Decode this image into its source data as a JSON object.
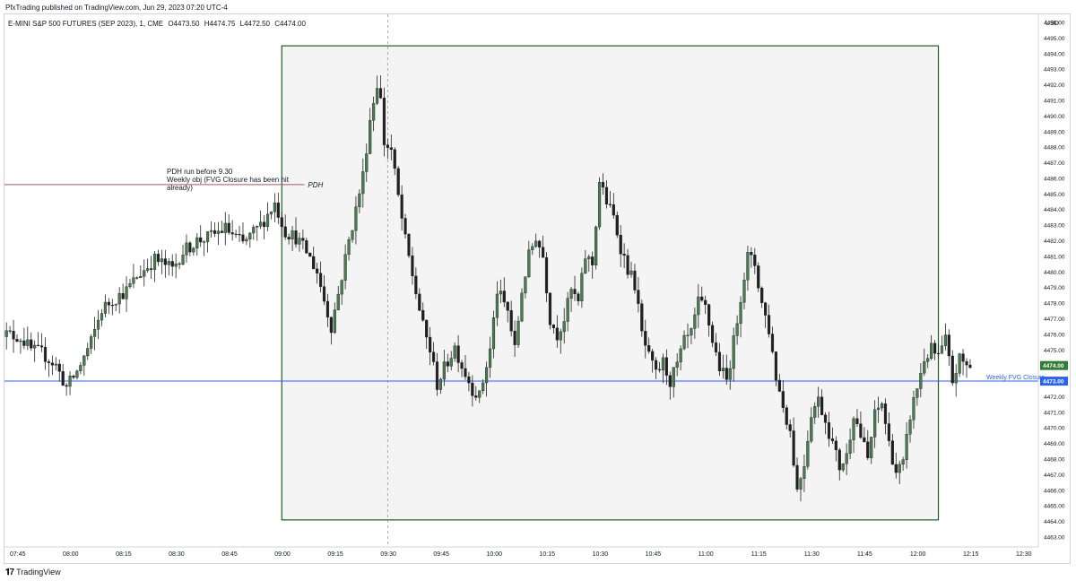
{
  "header": {
    "published": "PfxTrading published on TradingView.com, Jun 29, 2023 07:20 UTC-4"
  },
  "chart_data": {
    "type": "candlestick",
    "title": "E-MINI S&P 500 FUTURES (SEP 2023), 1, CME",
    "ohlc": {
      "o": "O4473.50",
      "h": "H4474.75",
      "l": "L4472.50",
      "c": "C4474.00"
    },
    "currency": "USD",
    "x_ticks": [
      "07:45",
      "08:00",
      "08:15",
      "08:30",
      "08:45",
      "09:00",
      "09:15",
      "09:30",
      "09:45",
      "10:00",
      "10:15",
      "10:30",
      "10:45",
      "11:00",
      "11:15",
      "11:30",
      "11:45",
      "12:00",
      "12:15",
      "12:30"
    ],
    "y_ticks": [
      4463,
      4464,
      4465,
      4466,
      4467,
      4468,
      4469,
      4470,
      4471,
      4472,
      4473,
      4474,
      4475,
      4476,
      4477,
      4478,
      4479,
      4480,
      4481,
      4482,
      4483,
      4484,
      4485,
      4486,
      4487,
      4488,
      4489,
      4490,
      4491,
      4492,
      4493,
      4494,
      4495,
      4496
    ],
    "ylim": [
      4462.3,
      4496.8
    ],
    "last_price": {
      "value": 4474.0,
      "label": "4474.00",
      "color": "#2e7d32"
    },
    "level_line": {
      "value": 4473.0,
      "label": "4473.00",
      "name": "Weekly FVG Closure",
      "color": "#2962ff"
    },
    "pdh_line": {
      "value": 4485.6,
      "label": "PDH",
      "color": "#b2555f",
      "from": "07:40",
      "to": "09:14"
    },
    "annotation": "PDH run before 9.30\nWeekly obj (FVG Closure has been hit already)",
    "box": {
      "from": "09:00",
      "to": "12:06",
      "top": 4494.5,
      "bottom": 4464.1,
      "color": "#1b5e20",
      "fill": "#f4f4f4"
    },
    "crosshair_time": "09:30",
    "colors": {
      "up": "#4a7b4e",
      "down": "#202020"
    },
    "anchors": [
      [
        "07:40",
        4476.8
      ],
      [
        "07:43",
        4476.0
      ],
      [
        "07:47",
        4475.8
      ],
      [
        "07:50",
        4475.0
      ],
      [
        "07:53",
        4474.8
      ],
      [
        "07:57",
        4474.0
      ],
      [
        "08:00",
        4472.6
      ],
      [
        "08:03",
        4473.6
      ],
      [
        "08:07",
        4475.5
      ],
      [
        "08:10",
        4477.6
      ],
      [
        "08:13",
        4478.2
      ],
      [
        "08:17",
        4478.8
      ],
      [
        "08:20",
        4479.7
      ],
      [
        "08:25",
        4480.8
      ],
      [
        "08:30",
        4480.2
      ],
      [
        "08:33",
        4481.3
      ],
      [
        "08:37",
        4482.0
      ],
      [
        "08:40",
        4482.2
      ],
      [
        "08:45",
        4482.8
      ],
      [
        "08:50",
        4481.8
      ],
      [
        "08:55",
        4483.0
      ],
      [
        "08:59",
        4484.4
      ],
      [
        "09:02",
        4482.6
      ],
      [
        "09:05",
        4482.2
      ],
      [
        "09:08",
        4481.3
      ],
      [
        "09:11",
        4480.0
      ],
      [
        "09:13",
        4478.2
      ],
      [
        "09:15",
        4476.5
      ],
      [
        "09:17",
        4478.6
      ],
      [
        "09:20",
        4482.0
      ],
      [
        "09:22",
        4484.0
      ],
      [
        "09:24",
        4486.2
      ],
      [
        "09:26",
        4489.8
      ],
      [
        "09:28",
        4492.1
      ],
      [
        "09:29",
        4491.0
      ],
      [
        "09:30",
        4488.3
      ],
      [
        "09:32",
        4487.8
      ],
      [
        "09:34",
        4484.8
      ],
      [
        "09:36",
        4482.0
      ],
      [
        "09:38",
        4479.8
      ],
      [
        "09:41",
        4476.5
      ],
      [
        "09:43",
        4475.0
      ],
      [
        "09:45",
        4472.8
      ],
      [
        "09:47",
        4473.8
      ],
      [
        "09:50",
        4475.2
      ],
      [
        "09:52",
        4474.0
      ],
      [
        "09:55",
        4472.5
      ],
      [
        "09:57",
        4472.0
      ],
      [
        "10:00",
        4475.0
      ],
      [
        "10:02",
        4478.8
      ],
      [
        "10:05",
        4477.5
      ],
      [
        "10:07",
        4475.0
      ],
      [
        "10:09",
        4478.8
      ],
      [
        "10:11",
        4481.0
      ],
      [
        "10:13",
        4482.3
      ],
      [
        "10:15",
        4481.0
      ],
      [
        "10:17",
        4477.0
      ],
      [
        "10:19",
        4476.0
      ],
      [
        "10:21",
        4477.0
      ],
      [
        "10:23",
        4478.8
      ],
      [
        "10:25",
        4478.0
      ],
      [
        "10:27",
        4481.0
      ],
      [
        "10:29",
        4480.5
      ],
      [
        "10:31",
        4485.8
      ],
      [
        "10:33",
        4484.5
      ],
      [
        "10:35",
        4483.5
      ],
      [
        "10:37",
        4481.6
      ],
      [
        "10:39",
        4480.2
      ],
      [
        "10:41",
        4479.2
      ],
      [
        "10:43",
        4476.0
      ],
      [
        "10:45",
        4474.5
      ],
      [
        "10:47",
        4473.4
      ],
      [
        "10:49",
        4474.2
      ],
      [
        "10:51",
        4473.0
      ],
      [
        "10:53",
        4474.0
      ],
      [
        "10:55",
        4475.5
      ],
      [
        "10:57",
        4476.0
      ],
      [
        "10:59",
        4478.0
      ],
      [
        "11:01",
        4477.7
      ],
      [
        "11:03",
        4475.6
      ],
      [
        "11:05",
        4473.9
      ],
      [
        "11:07",
        4473.0
      ],
      [
        "11:09",
        4475.5
      ],
      [
        "11:11",
        4478.5
      ],
      [
        "11:13",
        4481.0
      ],
      [
        "11:15",
        4480.5
      ],
      [
        "11:17",
        4478.0
      ],
      [
        "11:19",
        4476.3
      ],
      [
        "11:21",
        4473.3
      ],
      [
        "11:23",
        4471.4
      ],
      [
        "11:25",
        4469.8
      ],
      [
        "11:27",
        4466.0
      ],
      [
        "11:29",
        4467.8
      ],
      [
        "11:31",
        4471.0
      ],
      [
        "11:33",
        4471.8
      ],
      [
        "11:35",
        4470.5
      ],
      [
        "11:37",
        4469.0
      ],
      [
        "11:39",
        4467.5
      ],
      [
        "11:41",
        4468.2
      ],
      [
        "11:43",
        4471.0
      ],
      [
        "11:45",
        4469.5
      ],
      [
        "11:47",
        4468.0
      ],
      [
        "11:49",
        4470.8
      ],
      [
        "11:51",
        4471.6
      ],
      [
        "11:53",
        4469.0
      ],
      [
        "11:55",
        4467.2
      ],
      [
        "11:57",
        4467.6
      ],
      [
        "11:59",
        4470.8
      ],
      [
        "12:01",
        4472.6
      ],
      [
        "12:03",
        4474.4
      ],
      [
        "12:05",
        4475.0
      ],
      [
        "12:07",
        4474.5
      ],
      [
        "12:09",
        4475.6
      ],
      [
        "12:11",
        4473.0
      ],
      [
        "12:13",
        4474.4
      ],
      [
        "12:15",
        4474.0
      ]
    ]
  },
  "footer": {
    "brand": "TradingView"
  }
}
